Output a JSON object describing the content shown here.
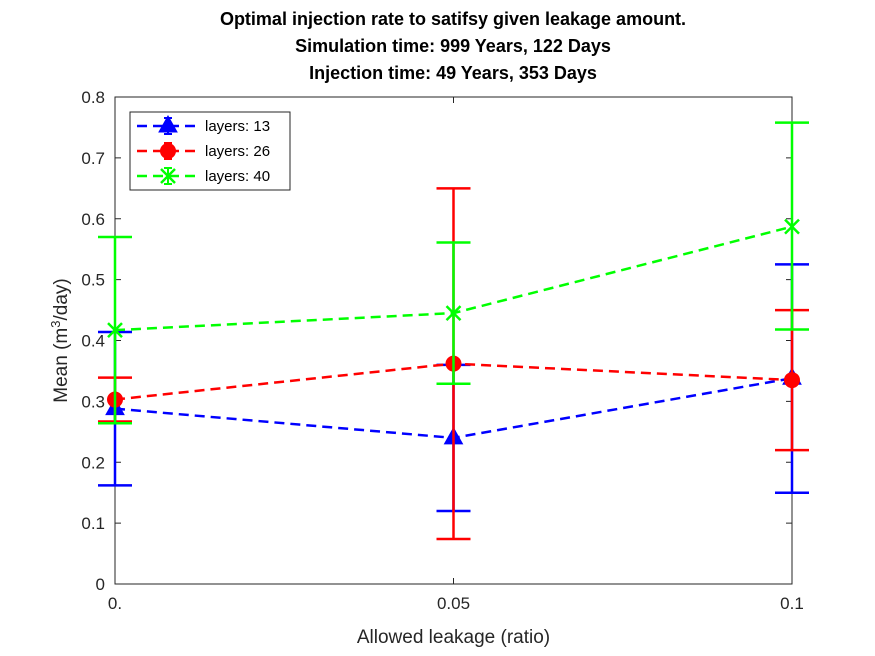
{
  "chart_data": {
    "type": "line",
    "title": [
      "Optimal injection rate to satifsy given leakage amount.",
      "Simulation time: 999 Years, 122 Days",
      "Injection time: 49 Years, 353 Days"
    ],
    "xlabel": "Allowed leakage (ratio)",
    "ylabel": "Mean (m³/day)",
    "x": [
      0,
      0.05,
      0.1
    ],
    "xticks": [
      0,
      0.05,
      0.1
    ],
    "xtick_labels": [
      "0.",
      "0.05",
      "0.1"
    ],
    "yticks": [
      0,
      0.1,
      0.2,
      0.3,
      0.4,
      0.5,
      0.6,
      0.7,
      0.8
    ],
    "ytick_labels": [
      "0",
      "0.1",
      "0.2",
      "0.3",
      "0.4",
      "0.5",
      "0.6",
      "0.7",
      "0.8"
    ],
    "xlim": [
      0,
      0.1
    ],
    "ylim": [
      0,
      0.8
    ],
    "grid": false,
    "legend_position": "top-left",
    "series": [
      {
        "name": "layers: 13",
        "color": "#0000ff",
        "marker": "triangle",
        "values": [
          0.288,
          0.24,
          0.338
        ],
        "err_lower": [
          0.162,
          0.12,
          0.15
        ],
        "err_upper": [
          0.414,
          0.36,
          0.525
        ]
      },
      {
        "name": "layers: 26",
        "color": "#ff0000",
        "marker": "circle",
        "values": [
          0.303,
          0.362,
          0.335
        ],
        "err_lower": [
          0.267,
          0.074,
          0.22
        ],
        "err_upper": [
          0.339,
          0.65,
          0.45
        ]
      },
      {
        "name": "layers: 40",
        "color": "#00ff00",
        "marker": "x",
        "values": [
          0.417,
          0.445,
          0.587
        ],
        "err_lower": [
          0.264,
          0.329,
          0.418
        ],
        "err_upper": [
          0.57,
          0.561,
          0.758
        ]
      }
    ]
  }
}
